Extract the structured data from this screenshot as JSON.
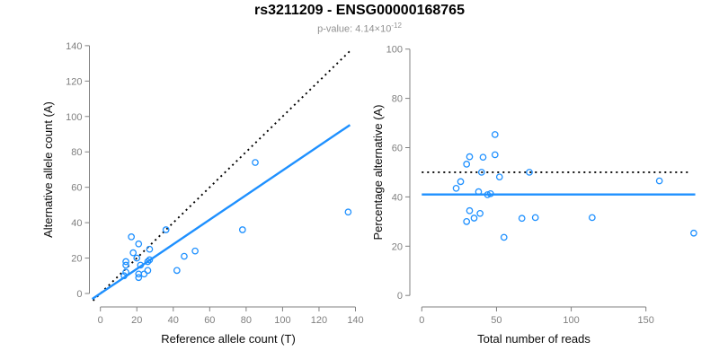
{
  "header": {
    "title": "rs3211209 - ENSG00000168765",
    "pvalue_label": "p-value: 4.14×10",
    "pvalue_exponent": "-12"
  },
  "colors": {
    "point": "#1E90FF",
    "fit_line": "#1E90FF",
    "reference_line": "#000000",
    "axis": "#808080",
    "tick_label": "#7f7f7f",
    "axis_title": "#0a0a0a",
    "subtitle": "#919191",
    "background": "#ffffff"
  },
  "chart_data": [
    {
      "type": "scatter",
      "name": "allele-counts-plot",
      "xlabel": "Reference allele count (T)",
      "ylabel": "Alternative allele count (A)",
      "xlim": [
        0,
        140
      ],
      "ylim": [
        0,
        140
      ],
      "xticks": [
        0,
        20,
        40,
        60,
        80,
        100,
        120,
        140
      ],
      "yticks": [
        0,
        20,
        40,
        60,
        80,
        100,
        120,
        140
      ],
      "grid": false,
      "legend": "none",
      "marker": "open-circle",
      "points": [
        [
          17,
          32
        ],
        [
          21,
          28
        ],
        [
          18,
          23
        ],
        [
          27,
          25
        ],
        [
          14,
          18
        ],
        [
          14,
          16
        ],
        [
          20,
          20
        ],
        [
          22,
          16
        ],
        [
          26,
          18
        ],
        [
          27,
          19
        ],
        [
          26,
          13
        ],
        [
          21,
          11
        ],
        [
          24,
          11
        ],
        [
          21,
          9
        ],
        [
          13,
          10
        ],
        [
          14,
          12
        ],
        [
          36,
          36
        ],
        [
          46,
          21
        ],
        [
          52,
          24
        ],
        [
          42,
          13
        ],
        [
          78,
          36
        ],
        [
          85,
          74
        ],
        [
          136,
          46
        ]
      ],
      "lines": [
        {
          "name": "identity-line",
          "style": "dotted",
          "color": "#000000",
          "slope": 1,
          "intercept": 0,
          "x_range": [
            -4,
            137.5
          ]
        },
        {
          "name": "fit-line",
          "style": "solid",
          "color": "#1E90FF",
          "slope": 0.695,
          "intercept": 0,
          "x_range": [
            -4.5,
            137
          ]
        }
      ]
    },
    {
      "type": "scatter",
      "name": "percentage-alternative-plot",
      "xlabel": "Total number of reads",
      "ylabel": "Percentage alternative (A)",
      "xlim": [
        0,
        150
      ],
      "ylim": [
        0,
        100
      ],
      "xticks": [
        0,
        50,
        100,
        150
      ],
      "yticks": [
        0,
        20,
        40,
        60,
        80,
        100
      ],
      "grid": false,
      "legend": "none",
      "marker": "open-circle",
      "points": [
        [
          49,
          65.3
        ],
        [
          49,
          57.1
        ],
        [
          41,
          56.1
        ],
        [
          52,
          48.1
        ],
        [
          32,
          56.3
        ],
        [
          30,
          53.3
        ],
        [
          40,
          50.0
        ],
        [
          38,
          42.1
        ],
        [
          44,
          40.9
        ],
        [
          46,
          41.3
        ],
        [
          39,
          33.3
        ],
        [
          32,
          34.4
        ],
        [
          35,
          31.4
        ],
        [
          30,
          30.0
        ],
        [
          23,
          43.5
        ],
        [
          26,
          46.2
        ],
        [
          72,
          50.0
        ],
        [
          67,
          31.3
        ],
        [
          76,
          31.6
        ],
        [
          55,
          23.6
        ],
        [
          114,
          31.6
        ],
        [
          159,
          46.5
        ],
        [
          182,
          25.3
        ]
      ],
      "lines": [
        {
          "name": "null-50pct-line",
          "style": "dotted",
          "color": "#000000",
          "slope": 0,
          "intercept": 50,
          "x_range": [
            0,
            180
          ]
        },
        {
          "name": "fit-line",
          "style": "solid",
          "color": "#1E90FF",
          "slope": 0,
          "intercept": 41,
          "x_range": [
            0,
            183
          ]
        }
      ]
    }
  ]
}
